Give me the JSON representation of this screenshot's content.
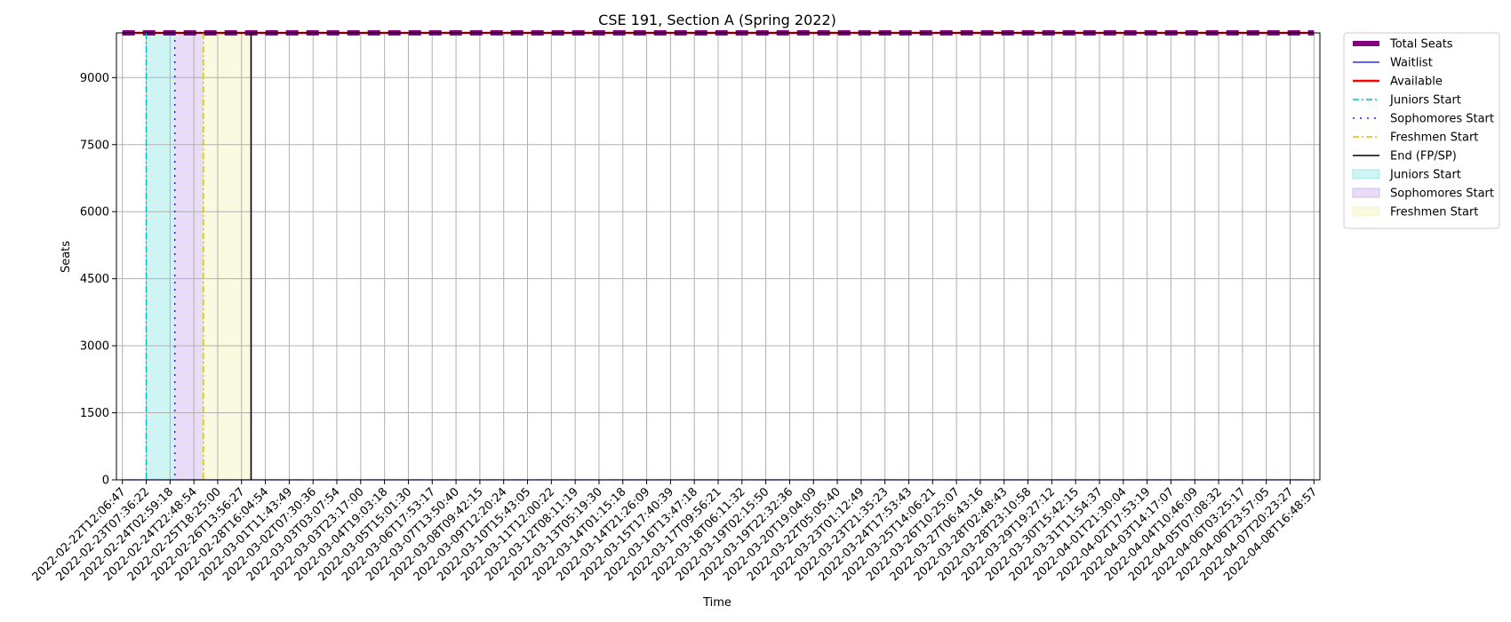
{
  "chart_data": {
    "type": "line",
    "title": "CSE 191, Section A (Spring 2022)",
    "xlabel": "Time",
    "ylabel": "Seats",
    "ylim": [
      0,
      10000
    ],
    "yticks": [
      0,
      1500,
      3000,
      4500,
      6000,
      7500,
      9000
    ],
    "grid": true,
    "legend_position": "outside-right-top",
    "x": [
      "2022-02-22T12:06:47",
      "2022-02-23T07:36:22",
      "2022-02-24T02:59:18",
      "2022-02-24T22:48:54",
      "2022-02-25T18:25:00",
      "2022-02-26T13:56:27",
      "2022-02-28T16:04:54",
      "2022-03-01T11:43:49",
      "2022-03-02T07:30:36",
      "2022-03-03T03:07:54",
      "2022-03-03T23:17:00",
      "2022-03-04T19:03:18",
      "2022-03-05T15:01:30",
      "2022-03-06T17:53:17",
      "2022-03-07T13:50:40",
      "2022-03-08T09:42:15",
      "2022-03-09T12:20:24",
      "2022-03-10T15:43:05",
      "2022-03-11T12:00:22",
      "2022-03-12T08:11:19",
      "2022-03-13T05:19:30",
      "2022-03-14T01:15:18",
      "2022-03-14T21:26:09",
      "2022-03-15T17:40:39",
      "2022-03-16T13:47:18",
      "2022-03-17T09:56:21",
      "2022-03-18T06:11:32",
      "2022-03-19T02:15:50",
      "2022-03-19T22:32:36",
      "2022-03-20T19:04:09",
      "2022-03-22T05:05:40",
      "2022-03-23T01:12:49",
      "2022-03-23T21:35:23",
      "2022-03-24T17:53:43",
      "2022-03-25T14:06:21",
      "2022-03-26T10:25:07",
      "2022-03-27T06:43:16",
      "2022-03-28T02:48:43",
      "2022-03-28T23:10:58",
      "2022-03-29T19:27:12",
      "2022-03-30T15:42:15",
      "2022-03-31T11:54:37",
      "2022-04-01T21:30:04",
      "2022-04-02T17:53:19",
      "2022-04-03T14:17:07",
      "2022-04-04T10:46:09",
      "2022-04-05T07:08:32",
      "2022-04-06T03:25:17",
      "2022-04-06T23:57:05",
      "2022-04-07T20:23:27",
      "2022-04-08T16:48:57"
    ],
    "series": [
      {
        "name": "Total Seats",
        "color": "#800080",
        "style": "dashed-thick",
        "value": 9999
      },
      {
        "name": "Waitlist",
        "color": "#0000ff",
        "style": "solid-thin",
        "value": 0
      },
      {
        "name": "Available",
        "color": "#ff0000",
        "style": "solid",
        "value": 9999
      }
    ],
    "markers": [
      {
        "name": "Juniors Start",
        "color": "#00bfbf",
        "style": "dashdot",
        "at_index": 1
      },
      {
        "name": "Sophomores Start",
        "color": "#5b00d8",
        "style": "dotted",
        "at_index": 2.2
      },
      {
        "name": "Freshmen Start",
        "color": "#d4c800",
        "style": "dashdot",
        "at_index": 3.4
      },
      {
        "name": "End (FP/SP)",
        "color": "#000000",
        "style": "solid",
        "at_index": 5.4
      }
    ],
    "spans": [
      {
        "name": "Juniors Start",
        "color": "#5fd9d9",
        "from_index": 1,
        "to_index": 2.2
      },
      {
        "name": "Sophomores Start",
        "color": "#b48ce8",
        "from_index": 2.2,
        "to_index": 3.4
      },
      {
        "name": "Freshmen Start",
        "color": "#eeee9a",
        "from_index": 3.4,
        "to_index": 5.4
      }
    ]
  }
}
